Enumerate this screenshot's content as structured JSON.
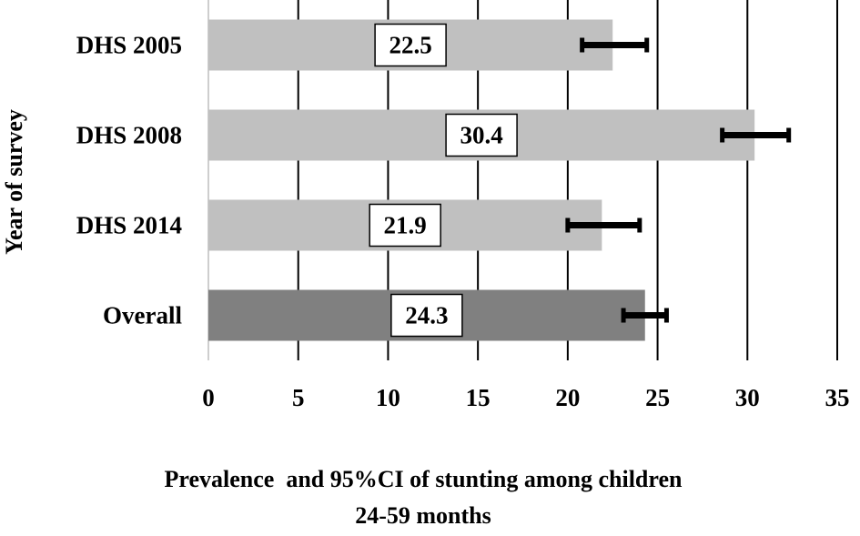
{
  "chart_data": {
    "type": "bar",
    "orientation": "horizontal",
    "categories": [
      "DHS 2005",
      "DHS 2008",
      "DHS 2014",
      "Overall"
    ],
    "values": [
      22.5,
      30.4,
      21.9,
      24.3
    ],
    "ci_lower": [
      20.8,
      28.6,
      20.0,
      23.1
    ],
    "ci_upper": [
      24.4,
      32.3,
      24.0,
      25.5
    ],
    "value_labels": [
      "22.5",
      "30.4",
      "21.9",
      "24.3"
    ],
    "bar_colors": [
      "#c0c0c0",
      "#c0c0c0",
      "#c0c0c0",
      "#808080"
    ],
    "xlim": [
      0,
      35
    ],
    "xticks": [
      0,
      5,
      10,
      15,
      20,
      25,
      30,
      35
    ],
    "xtick_labels": [
      "0",
      "5",
      "10",
      "15",
      "20",
      "25",
      "30",
      "35"
    ],
    "xlabel": "Prevalence  and 95%CI of stunting among children",
    "xlabel_line2": "24-59 months",
    "ylabel": "Year of survey",
    "grid": "vertical",
    "legend": "none"
  }
}
